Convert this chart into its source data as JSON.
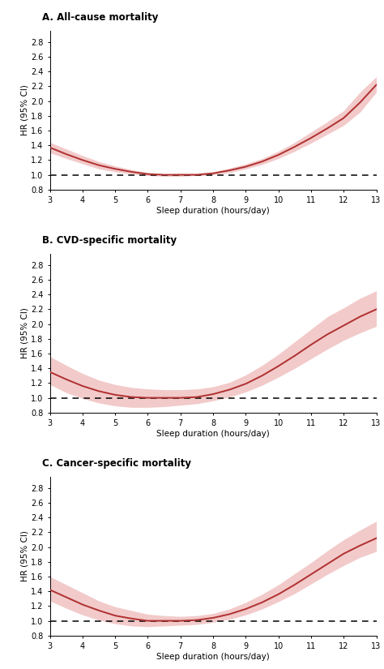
{
  "panels": [
    {
      "title": "A. All-cause mortality",
      "x": [
        3,
        3.5,
        4,
        4.5,
        5,
        5.5,
        6,
        6.5,
        7,
        7.5,
        8,
        8.5,
        9,
        9.5,
        10,
        10.5,
        11,
        11.5,
        12,
        12.5,
        13
      ],
      "hr": [
        1.37,
        1.28,
        1.2,
        1.13,
        1.08,
        1.04,
        1.01,
        1.0,
        1.0,
        1.0,
        1.02,
        1.06,
        1.11,
        1.18,
        1.27,
        1.38,
        1.5,
        1.63,
        1.77,
        1.98,
        2.22
      ],
      "ci_lower": [
        1.3,
        1.22,
        1.15,
        1.08,
        1.04,
        1.01,
        0.99,
        0.98,
        0.98,
        0.99,
        1.0,
        1.03,
        1.08,
        1.14,
        1.22,
        1.32,
        1.43,
        1.55,
        1.67,
        1.85,
        2.12
      ],
      "ci_upper": [
        1.44,
        1.35,
        1.26,
        1.18,
        1.12,
        1.07,
        1.03,
        1.01,
        1.02,
        1.02,
        1.04,
        1.09,
        1.15,
        1.22,
        1.32,
        1.44,
        1.58,
        1.72,
        1.87,
        2.12,
        2.33
      ]
    },
    {
      "title": "B. CVD-specific mortality",
      "x": [
        3,
        3.5,
        4,
        4.5,
        5,
        5.5,
        6,
        6.5,
        7,
        7.5,
        8,
        8.5,
        9,
        9.5,
        10,
        10.5,
        11,
        11.5,
        12,
        12.5,
        13
      ],
      "hr": [
        1.35,
        1.25,
        1.16,
        1.09,
        1.04,
        1.01,
        1.0,
        1.0,
        1.0,
        1.01,
        1.05,
        1.11,
        1.19,
        1.3,
        1.43,
        1.57,
        1.72,
        1.86,
        1.98,
        2.1,
        2.2
      ],
      "ci_lower": [
        1.18,
        1.07,
        0.99,
        0.93,
        0.89,
        0.87,
        0.87,
        0.88,
        0.9,
        0.92,
        0.96,
        1.01,
        1.08,
        1.17,
        1.28,
        1.4,
        1.53,
        1.66,
        1.78,
        1.88,
        1.97
      ],
      "ci_upper": [
        1.56,
        1.44,
        1.33,
        1.24,
        1.18,
        1.14,
        1.12,
        1.11,
        1.11,
        1.12,
        1.15,
        1.21,
        1.31,
        1.44,
        1.59,
        1.76,
        1.93,
        2.1,
        2.22,
        2.35,
        2.45
      ]
    },
    {
      "title": "C. Cancer-specific mortality",
      "x": [
        3,
        3.5,
        4,
        4.5,
        5,
        5.5,
        6,
        6.5,
        7,
        7.5,
        8,
        8.5,
        9,
        9.5,
        10,
        10.5,
        11,
        11.5,
        12,
        12.5,
        13
      ],
      "hr": [
        1.42,
        1.32,
        1.22,
        1.14,
        1.07,
        1.03,
        1.0,
        1.0,
        1.0,
        1.01,
        1.04,
        1.09,
        1.16,
        1.25,
        1.36,
        1.49,
        1.63,
        1.77,
        1.91,
        2.02,
        2.12
      ],
      "ci_lower": [
        1.27,
        1.17,
        1.08,
        1.01,
        0.96,
        0.93,
        0.92,
        0.93,
        0.94,
        0.95,
        0.98,
        1.02,
        1.08,
        1.16,
        1.26,
        1.37,
        1.5,
        1.63,
        1.75,
        1.86,
        1.94
      ],
      "ci_upper": [
        1.6,
        1.49,
        1.38,
        1.27,
        1.19,
        1.14,
        1.09,
        1.07,
        1.06,
        1.07,
        1.1,
        1.16,
        1.25,
        1.36,
        1.49,
        1.64,
        1.79,
        1.95,
        2.1,
        2.23,
        2.35
      ]
    }
  ],
  "line_color": "#b03030",
  "fill_color": "#e8a0a0",
  "fill_alpha": 0.55,
  "dashed_color": "#000000",
  "ylabel": "HR (95% CI)",
  "xlabel": "Sleep duration (hours/day)",
  "ylim": [
    0.8,
    2.95
  ],
  "yticks": [
    0.8,
    1.0,
    1.2,
    1.4,
    1.6,
    1.8,
    2.0,
    2.2,
    2.4,
    2.6,
    2.8
  ],
  "xticks": [
    3,
    4,
    5,
    6,
    7,
    8,
    9,
    10,
    11,
    12,
    13
  ],
  "background_color": "#ffffff",
  "title_fontsize": 8.5,
  "axis_fontsize": 7.5,
  "tick_fontsize": 7
}
